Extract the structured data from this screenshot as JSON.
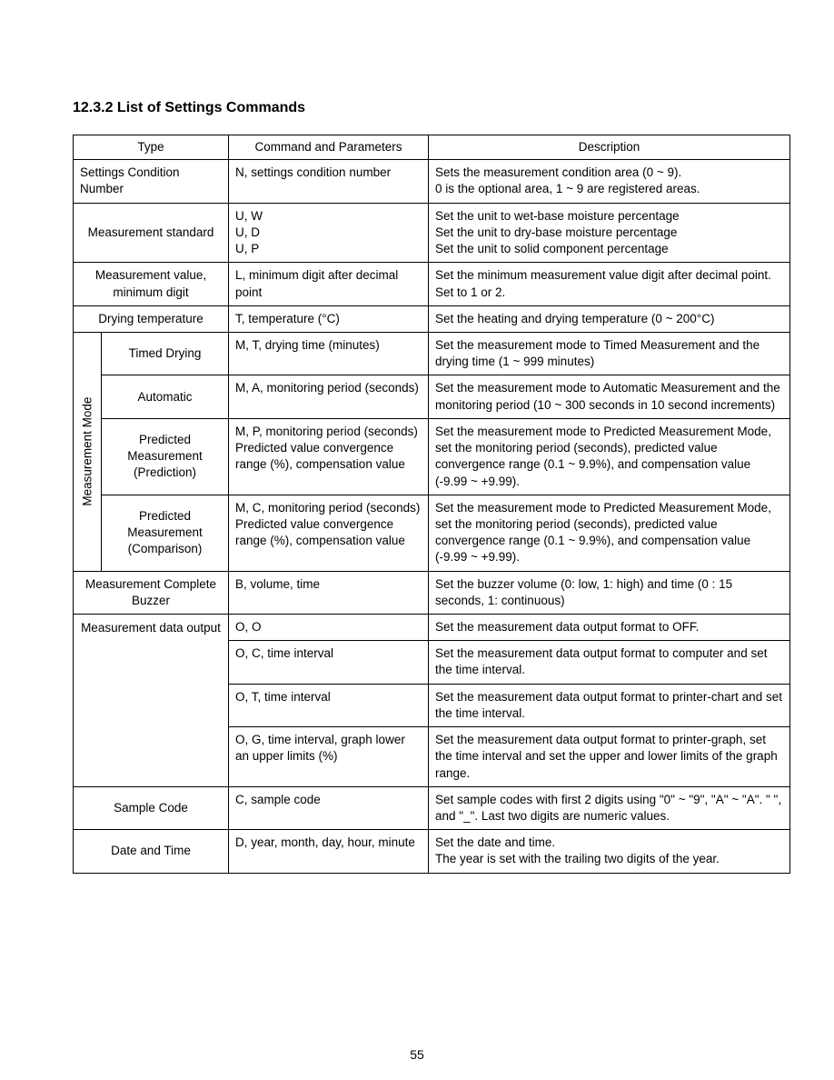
{
  "heading": "12.3.2 List of Settings Commands",
  "pageNumber": "55",
  "headers": {
    "type": "Type",
    "cmd": "Command and Parameters",
    "desc": "Description"
  },
  "vert": {
    "measurementMode": "Measurement Mode"
  },
  "rows": {
    "r1": {
      "type": "Settings Condition Number",
      "cmd": "N, settings condition number",
      "desc": "Sets the measurement condition area (0 ~ 9).\n0 is the optional area, 1 ~ 9 are registered areas."
    },
    "r2": {
      "type": "Measurement standard",
      "cmd": "U, W\nU, D\nU, P",
      "desc": "Set the unit to wet-base moisture percentage\nSet the unit to dry-base moisture percentage\nSet the unit to solid component percentage"
    },
    "r3": {
      "type": "Measurement value, minimum digit",
      "cmd": "L, minimum digit after decimal point",
      "desc": "Set the minimum measurement value digit after decimal point. Set to 1 or 2."
    },
    "r4": {
      "type": "Drying temperature",
      "cmd": "T, temperature (°C)",
      "desc": "Set the heating and drying temperature (0 ~ 200°C)"
    },
    "r5": {
      "type": "Timed Drying",
      "cmd": "M, T, drying time (minutes)",
      "desc": "Set the measurement mode to Timed Measurement and the drying time (1 ~ 999 minutes)"
    },
    "r6": {
      "type": "Automatic",
      "cmd": "M, A, monitoring period (seconds)",
      "desc": "Set the measurement mode to Automatic Measurement and the monitoring period (10 ~ 300 seconds in 10 second increments)"
    },
    "r7": {
      "type": "Predicted Measurement (Prediction)",
      "cmd": "M, P, monitoring period (seconds)\nPredicted value convergence range (%), compensation value",
      "desc": "Set the measurement mode to Predicted Measurement Mode, set the monitoring period (seconds), predicted value convergence range (0.1 ~ 9.9%), and compensation value (-9.99 ~ +9.99)."
    },
    "r8": {
      "type": "Predicted Measurement (Comparison)",
      "cmd": "M, C, monitoring period (seconds)\nPredicted value convergence range (%), compensation value",
      "desc": "Set the measurement mode to Predicted Measurement Mode, set the monitoring period (seconds), predicted value convergence range (0.1 ~ 9.9%), and compensation value (-9.99 ~ +9.99)."
    },
    "r9": {
      "type": "Measurement Complete Buzzer",
      "cmd": "B, volume, time",
      "desc": "Set the buzzer volume (0: low, 1: high) and time (0 : 15 seconds, 1: continuous)"
    },
    "r10": {
      "type": "Measurement data output",
      "a": {
        "cmd": "O, O",
        "desc": "Set the measurement data output format to OFF."
      },
      "b": {
        "cmd": "O, C, time interval",
        "desc": "Set the measurement data output format to computer and set the time interval."
      },
      "c": {
        "cmd": "O, T, time interval",
        "desc": "Set the measurement data output format to printer-chart and set the time interval."
      },
      "d": {
        "cmd": "O, G, time interval, graph lower an upper limits (%)",
        "desc": "Set the measurement data output format to printer-graph, set the time interval and set the upper and lower limits of the graph range."
      }
    },
    "r11": {
      "type": "Sample Code",
      "cmd": "C, sample code",
      "desc": "Set sample codes with first 2 digits using \"0\" ~ \"9\", \"A\" ~ \"A\". \" \", and \"_\". Last two digits are numeric values."
    },
    "r12": {
      "type": "Date and Time",
      "cmd": "D, year, month, day, hour, minute",
      "desc": "Set the date and time.\nThe year is set with the trailing two digits of the year."
    }
  }
}
